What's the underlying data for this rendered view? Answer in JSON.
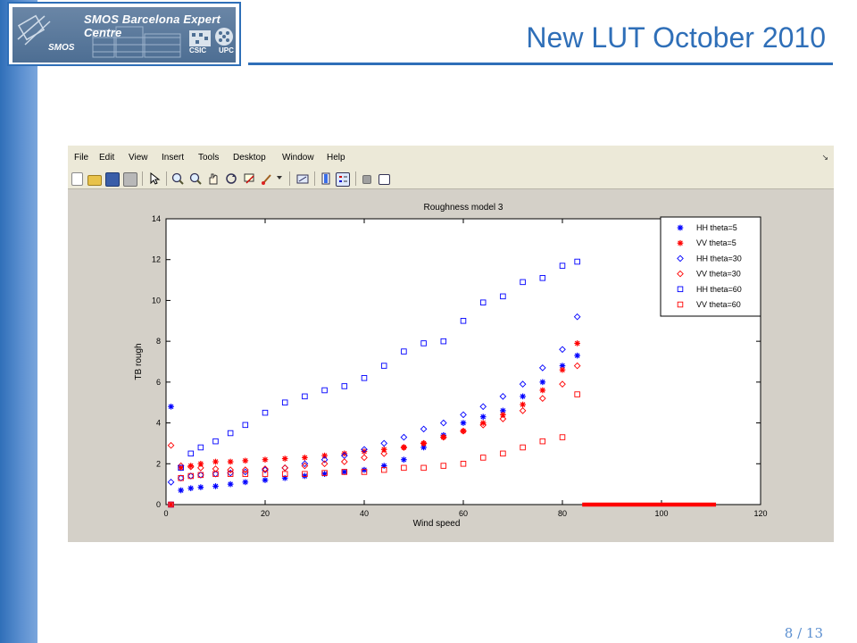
{
  "slide": {
    "title": "New LUT October 2010",
    "page": "8 / 13",
    "logo": {
      "org": "SMOS Barcelona Expert Centre",
      "mark": "SMOS",
      "csic": "CSIC",
      "upc": "UPC"
    }
  },
  "matlab": {
    "menu": [
      "File",
      "Edit",
      "View",
      "Insert",
      "Tools",
      "Desktop",
      "Window",
      "Help"
    ],
    "menu_arrow": "↘",
    "toolbar": [
      "new-icon",
      "open-icon",
      "save-icon",
      "print-icon",
      "pointer-icon",
      "zoom-in-icon",
      "zoom-out-icon",
      "pan-icon",
      "rotate-icon",
      "data-cursor-icon",
      "brush-icon",
      "colorbar-icon",
      "legend-icon",
      "plot-tools-hide-icon",
      "plot-tools-show-icon"
    ]
  },
  "chart_data": {
    "type": "scatter",
    "title": "Roughness model 3",
    "xlabel": "Wind speed",
    "ylabel": "TB rough",
    "xlim": [
      0,
      120
    ],
    "ylim": [
      0,
      14
    ],
    "xticks": [
      0,
      20,
      40,
      60,
      80,
      100,
      120
    ],
    "yticks": [
      0,
      2,
      4,
      6,
      8,
      10,
      12,
      14
    ],
    "legend_position": "top-right",
    "series": [
      {
        "name": "HH  theta=5",
        "marker": "star",
        "color": "#0000ff",
        "x": [
          1,
          3,
          5,
          7,
          10,
          13,
          16,
          20,
          24,
          28,
          32,
          36,
          40,
          44,
          48,
          52,
          56,
          60,
          64,
          68,
          72,
          76,
          80,
          83
        ],
        "y": [
          4.8,
          0.7,
          0.8,
          0.85,
          0.9,
          1.0,
          1.1,
          1.2,
          1.3,
          1.4,
          1.5,
          1.6,
          1.7,
          1.9,
          2.2,
          2.8,
          3.4,
          4.0,
          4.3,
          4.6,
          5.3,
          6.0,
          6.8,
          7.3
        ]
      },
      {
        "name": "VV  theta=5",
        "marker": "star",
        "color": "#ff0000",
        "x": [
          1,
          3,
          5,
          7,
          10,
          13,
          16,
          20,
          24,
          28,
          32,
          36,
          40,
          44,
          48,
          52,
          56,
          60,
          64,
          68,
          72,
          76,
          80,
          83
        ],
        "y": [
          0,
          1.8,
          1.9,
          2.0,
          2.1,
          2.1,
          2.15,
          2.2,
          2.25,
          2.3,
          2.4,
          2.5,
          2.6,
          2.7,
          2.8,
          3.0,
          3.3,
          3.6,
          4.0,
          4.4,
          4.9,
          5.6,
          6.6,
          7.9
        ]
      },
      {
        "name": "HH  theta=30",
        "marker": "diamond",
        "color": "#0000ff",
        "x": [
          1,
          3,
          5,
          7,
          10,
          13,
          16,
          20,
          24,
          28,
          32,
          36,
          40,
          44,
          48,
          52,
          56,
          60,
          64,
          68,
          72,
          76,
          80,
          83
        ],
        "y": [
          1.1,
          1.3,
          1.4,
          1.45,
          1.5,
          1.55,
          1.6,
          1.7,
          1.8,
          2.0,
          2.2,
          2.4,
          2.7,
          3.0,
          3.3,
          3.7,
          4.0,
          4.4,
          4.8,
          5.3,
          5.9,
          6.7,
          7.6,
          9.2
        ]
      },
      {
        "name": "VV  theta=30",
        "marker": "diamond",
        "color": "#ff0000",
        "x": [
          1,
          3,
          5,
          7,
          10,
          13,
          16,
          20,
          24,
          28,
          32,
          36,
          40,
          44,
          48,
          52,
          56,
          60,
          64,
          68,
          72,
          76,
          80,
          83
        ],
        "y": [
          2.9,
          1.9,
          1.85,
          1.8,
          1.75,
          1.7,
          1.7,
          1.75,
          1.8,
          1.9,
          2.0,
          2.1,
          2.3,
          2.5,
          2.8,
          3.0,
          3.3,
          3.6,
          3.9,
          4.2,
          4.6,
          5.2,
          5.9,
          6.8
        ]
      },
      {
        "name": "HH  theta=60",
        "marker": "square",
        "color": "#0000ff",
        "x": [
          1,
          3,
          5,
          7,
          10,
          13,
          16,
          20,
          24,
          28,
          32,
          36,
          40,
          44,
          48,
          52,
          56,
          60,
          64,
          68,
          72,
          76,
          80,
          83
        ],
        "y": [
          0,
          1.8,
          2.5,
          2.8,
          3.1,
          3.5,
          3.9,
          4.5,
          5.0,
          5.3,
          5.6,
          5.8,
          6.2,
          6.8,
          7.5,
          7.9,
          8.0,
          9.0,
          9.9,
          10.2,
          10.9,
          11.1,
          11.7,
          11.9
        ]
      },
      {
        "name": "VV  theta=60",
        "marker": "square",
        "color": "#ff0000",
        "x": [
          1,
          3,
          5,
          7,
          10,
          13,
          16,
          20,
          24,
          28,
          32,
          36,
          40,
          44,
          48,
          52,
          56,
          60,
          64,
          68,
          72,
          76,
          80,
          83
        ],
        "y": [
          0,
          1.3,
          1.4,
          1.45,
          1.5,
          1.5,
          1.5,
          1.5,
          1.5,
          1.5,
          1.55,
          1.6,
          1.6,
          1.7,
          1.8,
          1.8,
          1.9,
          2.0,
          2.3,
          2.5,
          2.8,
          3.1,
          3.3,
          5.4
        ]
      }
    ],
    "highlight_bar": {
      "color": "#ff0000",
      "x": [
        84,
        111
      ],
      "y": 0
    }
  }
}
